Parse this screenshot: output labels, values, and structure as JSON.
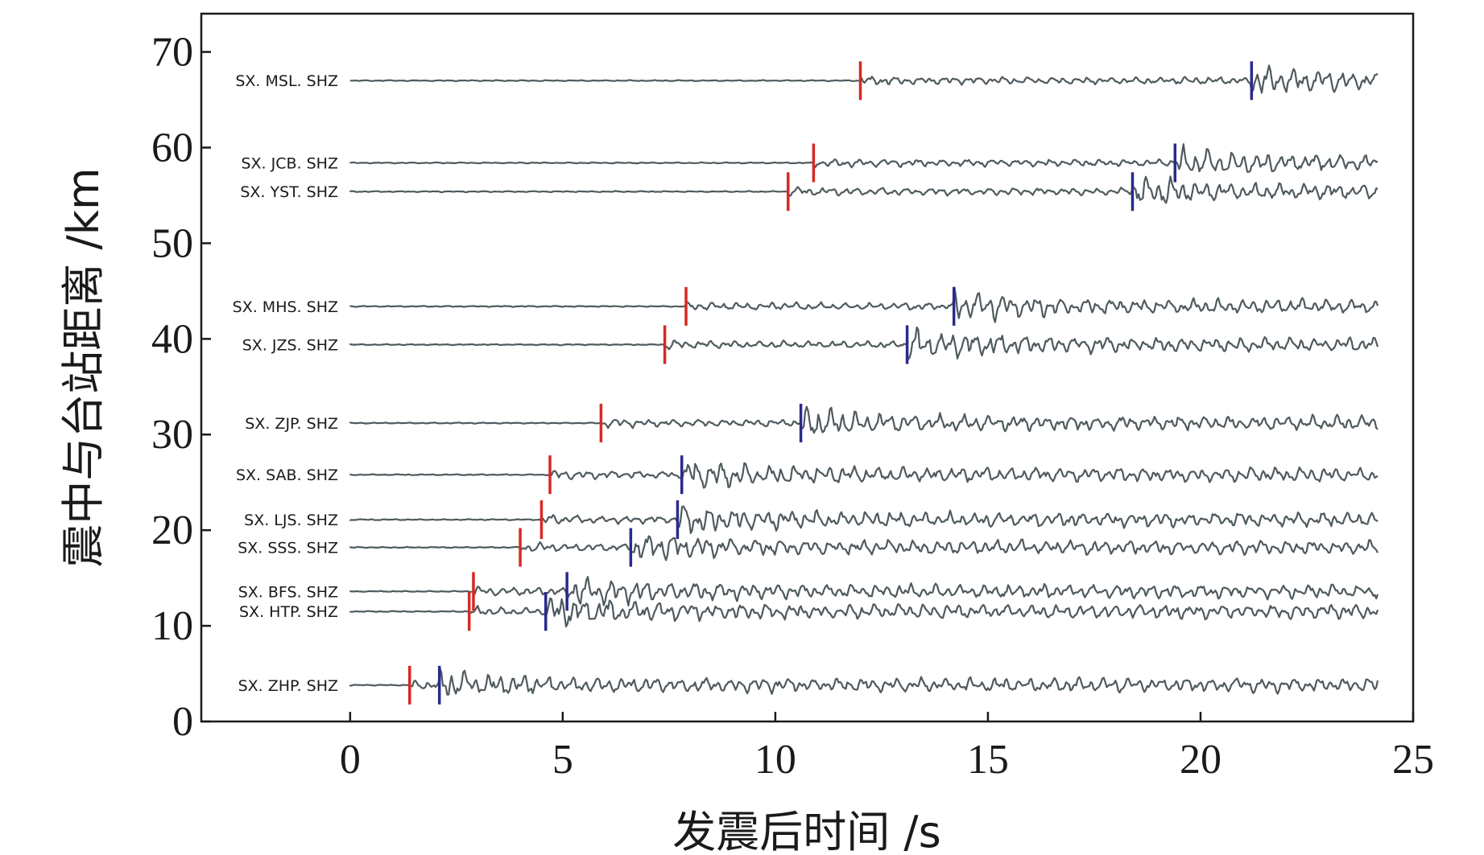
{
  "chart_data": {
    "type": "line",
    "xlabel": "发震后时间 /s",
    "ylabel": "震中与台站距离 /km",
    "xlim": [
      -3.5,
      25
    ],
    "ylim": [
      0,
      74
    ],
    "xticks": [
      0,
      5,
      10,
      15,
      20,
      25
    ],
    "yticks": [
      0,
      10,
      20,
      30,
      40,
      50,
      60,
      70
    ],
    "grid": false,
    "colors": {
      "trace": "#4f5a5f",
      "p_pick": "#d62a22",
      "s_pick": "#2a2a8c"
    },
    "series": [
      {
        "name": "SX. MSL. SHZ",
        "distance_km": 67.0,
        "p_time": 12.0,
        "s_time": 21.2,
        "end_time": 24.2
      },
      {
        "name": "SX. JCB. SHZ",
        "distance_km": 58.4,
        "p_time": 10.9,
        "s_time": 19.4,
        "end_time": 24.2
      },
      {
        "name": "SX. YST. SHZ",
        "distance_km": 55.4,
        "p_time": 10.3,
        "s_time": 18.4,
        "end_time": 24.2
      },
      {
        "name": "SX. MHS. SHZ",
        "distance_km": 43.4,
        "p_time": 7.9,
        "s_time": 14.2,
        "end_time": 24.2
      },
      {
        "name": "SX. JZS. SHZ",
        "distance_km": 39.4,
        "p_time": 7.4,
        "s_time": 13.1,
        "end_time": 24.2
      },
      {
        "name": "SX. ZJP. SHZ",
        "distance_km": 31.2,
        "p_time": 5.9,
        "s_time": 10.6,
        "end_time": 24.2
      },
      {
        "name": "SX. SAB. SHZ",
        "distance_km": 25.8,
        "p_time": 4.7,
        "s_time": 7.8,
        "end_time": 24.2
      },
      {
        "name": "SX. LJS. SHZ",
        "distance_km": 21.1,
        "p_time": 4.5,
        "s_time": 7.7,
        "end_time": 24.2
      },
      {
        "name": "SX. SSS. SHZ",
        "distance_km": 18.2,
        "p_time": 4.0,
        "s_time": 6.6,
        "end_time": 24.2
      },
      {
        "name": "SX. BFS. SHZ",
        "distance_km": 13.6,
        "p_time": 2.9,
        "s_time": 5.1,
        "end_time": 24.2
      },
      {
        "name": "SX. HTP. SHZ",
        "distance_km": 11.5,
        "p_time": 2.8,
        "s_time": 4.6,
        "end_time": 24.2
      },
      {
        "name": "SX. ZHP. SHZ",
        "distance_km": 3.8,
        "p_time": 1.4,
        "s_time": 2.1,
        "end_time": 24.2
      }
    ]
  }
}
